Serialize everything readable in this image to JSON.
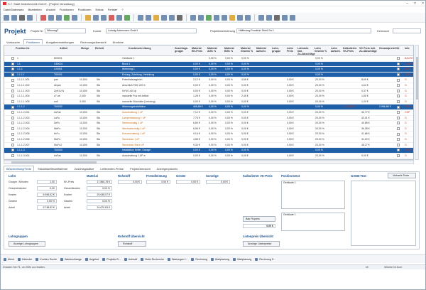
{
  "window": {
    "title": "S.T. Stadt Datentechnik GmbH - [Projekt Verwaltung]"
  },
  "menu": [
    "Datei/Datensatz",
    "Bearbeiten",
    "Ansicht",
    "Funktionen",
    "Positionen",
    "Extras",
    "Fenster",
    "?"
  ],
  "project": {
    "title": "Projekt",
    "nr_label": "Projekt Nr",
    "nr_value": "Wlerweg2",
    "kunde_label": "Kunde",
    "kunde_value": "Ludwig Ackermann GmbH",
    "bez_label": "Projektbezeichnung",
    "bez_value": "Häfferweg Frankfurt Strieß Nr.1",
    "kennwort_label": "Kennwort"
  },
  "tabs": [
    "Vorbauche",
    "Positionen",
    "Ausgabeeinstellungen",
    "Rechnungsübersicht",
    "Ähnliche"
  ],
  "active_tab": 1,
  "columns": [
    "Position Nr.",
    "Artikel",
    "Menge",
    "Einheit",
    "Kurzbeschreibung",
    "Zuschlags-gruppe",
    "Material EK-Preis",
    "Material AGK %",
    "Material BGK %",
    "Material Gewinn %",
    "Material aufschl.",
    "Lohn-gruppe",
    "Lohn Preis",
    "Lohnmin. inkl. Zu-/Abschläge",
    "Lohn Gewinn %",
    "Lohn aufschl.",
    "Kalkulierter VK-Preis",
    "VK Preis inkl. Zu-/Abschläge",
    "Gesamtpreis",
    "Ohl.",
    "Info"
  ],
  "rows": [
    {
      "pos": "1",
      "art": "800001",
      "menge": "",
      "einh": "",
      "text": "Gebäude 1",
      "mek": "",
      "magk": "0,00 %",
      "mbgk": "0,00 %",
      "mgew": "0,00 %",
      "lpreis": "",
      "lgew": "0,00 %",
      "kvk": "",
      "vk": "",
      "ges": "",
      "info": "BAUTEIL",
      "style": ""
    },
    {
      "pos": "1.1",
      "art": "G80001",
      "menge": "",
      "einh": "",
      "text": "Block 1",
      "mek": "0,00 €",
      "magk": "0,00 %",
      "mbgk": "0,00 %",
      "mgew": "0,00 %",
      "lpreis": "",
      "lgew": "0,00 %",
      "kvk": "",
      "vk": "",
      "ges": "",
      "info": "GEWERK",
      "style": "hl"
    },
    {
      "pos": "1.1.1",
      "art": "L00001",
      "menge": "",
      "einh": "",
      "text": "Wohnung 1",
      "mek": "0,00 €",
      "magk": "0,00 %",
      "mbgk": "0,00 %",
      "mgew": "0,00 %",
      "lpreis": "",
      "lgew": "0,00 %",
      "kvk": "",
      "vk": "",
      "ges": "",
      "info": "LOS",
      "style": "hl"
    },
    {
      "pos": "1.1.1.1",
      "art": "T00001",
      "menge": "",
      "einh": "",
      "text": "Erdung, Zuleitung, Verteilung",
      "mek": "0,00 €",
      "magk": "0,00 %",
      "mbgk": "0,00 %",
      "mgew": "0,00 %",
      "lpreis": "",
      "lgew": "0,00 %",
      "kvk": "",
      "vk": "",
      "ges": "",
      "info": "TITEL",
      "style": "hl"
    },
    {
      "pos": "1.1.1.1.001",
      "art": "pan",
      "menge": "10,000",
      "einh": "Stk",
      "text": "Potentialausgleich",
      "mek": "2,12 €",
      "magk": "0,00 %",
      "mbgk": "0,00 %",
      "mgew": "4,56 €",
      "lpreis": "0,00 €",
      "lgew": "20,00 %",
      "kvk": "",
      "vk": "8,65 €",
      "ges": "",
      "info": "G",
      "style": ""
    },
    {
      "pos": "1.1.1.1.002",
      "art": "depan",
      "menge": "10,000",
      "einh": "Stk",
      "text": "Anschluß PAS 10S 6",
      "mek": "0,00 €",
      "magk": "0,00 %",
      "mbgk": "0,00 %",
      "mgew": "0,00 €",
      "lpreis": "0,00 €",
      "lgew": "20,00 %",
      "kvk": "",
      "vk": "1,64 €",
      "ges": "",
      "info": "G",
      "style": ""
    },
    {
      "pos": "1.1.1.1.003",
      "art": "ZyH1V-N",
      "menge": "10,000",
      "einh": "Stk",
      "text": "NYM 1x10 ql",
      "mek": "0,00 €",
      "magk": "0,00 %",
      "mbgk": "0,00 %",
      "mgew": "0,00 €",
      "lpreis": "0,00 €",
      "lgew": "20,00 %",
      "kvk": "",
      "vk": "0,37 €",
      "ges": "",
      "info": "G",
      "style": ""
    },
    {
      "pos": "1.1.1.1.004",
      "art": "z7-ne",
      "menge": "2,000",
      "einh": "Stk",
      "text": "manuelle Pos mit Artikel",
      "mek": "1,28 €",
      "magk": "0,00 %",
      "mbgk": "0,00 %",
      "mgew": "2,45 €",
      "lpreis": "0,00 €",
      "lgew": "20,00 %",
      "kvk": "",
      "vk": "1,80 €",
      "ges": "",
      "info": "G",
      "style": ""
    },
    {
      "pos": "1.1.1.1.005",
      "art": "mdl",
      "menge": "3,000",
      "einh": "Stk",
      "text": "manuelle Stückliste (Leistung)",
      "mek": "0,00 €",
      "magk": "0,00 %",
      "mbgk": "0,00 %",
      "mgew": "0,00 €",
      "lpreis": "0,00 €",
      "lgew": "20,00 %",
      "kvk": "",
      "vk": "1,00 €",
      "ges": "",
      "info": "G",
      "style": ""
    },
    {
      "pos": "1.1.1.2",
      "art": "T00002",
      "menge": "",
      "einh": "",
      "text": "Wohnungsinstallation",
      "mek": "465,88 €",
      "magk": "0,00 %",
      "mbgk": "0,00 %",
      "mgew": "0,00 %",
      "lpreis": "",
      "lgew": "0,00 %",
      "kvk": "2.986,88 €",
      "vk": "",
      "ges": "2.986,88 €",
      "info": "TITEL",
      "style": "hl"
    },
    {
      "pos": "1.1.1.2.001",
      "art": "AsFav",
      "menge": "10,000",
      "einh": "Stk",
      "text": "Ausschaltung 1 uP",
      "mek": "7,12 €",
      "magk": "0,00 %",
      "mbgk": "0,00 %",
      "mgew": "0,00 €",
      "lpreis": "0,00 €",
      "lgew": "20,00 %",
      "kvk": "",
      "vk": "33,77 €",
      "ges": "",
      "info": "GSP",
      "style": "orange"
    },
    {
      "pos": "1.1.1.2.002",
      "art": "LaFu",
      "menge": "10,000",
      "einh": "Stk",
      "text": "Lampenfassung 1 uP",
      "mek": "7,75 €",
      "magk": "0,00 %",
      "mbgk": "0,00 %",
      "mgew": "0,00 €",
      "lpreis": "0,00 €",
      "lgew": "20,00 %",
      "kvk": "",
      "vk": "43,01 €",
      "ges": "",
      "info": "G",
      "style": "orange"
    },
    {
      "pos": "1.1.1.2.003",
      "art": "SeFu",
      "menge": "10,000",
      "einh": "Stk",
      "text": "Serienschaltg 1 uP",
      "mek": "6,80 €",
      "magk": "0,00 %",
      "mbgk": "0,00 %",
      "mgew": "0,00 €",
      "lpreis": "0,00 €",
      "lgew": "20,00 %",
      "kvk": "",
      "vk": "40,85 €",
      "ges": "",
      "info": "G",
      "style": "orange"
    },
    {
      "pos": "1.1.1.2.004",
      "art": "WeFu",
      "menge": "10,000",
      "einh": "Stk",
      "text": "Wechselschaltg 1 uP",
      "mek": "6,96 €",
      "magk": "0,00 %",
      "mbgk": "0,00 %",
      "mgew": "0,00 €",
      "lpreis": "0,00 €",
      "lgew": "20,00 %",
      "kvk": "",
      "vk": "39,08 €",
      "ges": "",
      "info": "G",
      "style": "orange"
    },
    {
      "pos": "1.1.1.2.005",
      "art": "KrFu",
      "menge": "10,000",
      "einh": "Stk",
      "text": "Kreuzschaltung 1 uP",
      "mek": "9,16 €",
      "magk": "0,00 %",
      "mbgk": "0,00 %",
      "mgew": "0,00 €",
      "lpreis": "0,00 €",
      "lgew": "20,00 %",
      "kvk": "",
      "vk": "41,86 €",
      "ges": "",
      "info": "G",
      "style": "orange"
    },
    {
      "pos": "1.1.1.2.006",
      "art": "StoFu",
      "menge": "10,000",
      "einh": "Stk",
      "text": "Steckdose 1 uP",
      "mek": "4,88 €",
      "magk": "0,00 %",
      "mbgk": "0,00 %",
      "mgew": "0,00 €",
      "lpreis": "0,00 €",
      "lgew": "20,00 %",
      "kvk": "",
      "vk": "31,00 €",
      "ges": "",
      "info": "G",
      "style": "orange"
    },
    {
      "pos": "1.1.1.2.007",
      "art": "StoFu2",
      "menge": "10,000",
      "einh": "Stk",
      "text": "Steckdose 2fach uP",
      "mek": "9,34 €",
      "magk": "0,00 %",
      "mbgk": "0,00 %",
      "mgew": "0,00 €",
      "lpreis": "0,00 €",
      "lgew": "20,00 %",
      "kvk": "",
      "vk": "48,27 €",
      "ges": "",
      "info": "G",
      "style": "orange"
    },
    {
      "pos": "1.1.1.3",
      "art": "T00003",
      "menge": "",
      "einh": "",
      "text": "Installation Keller, Garage",
      "mek": "0,00 €",
      "magk": "0,00 %",
      "mbgk": "0,00 %",
      "mgew": "0,00 %",
      "lpreis": "",
      "lgew": "0,00 %",
      "kvk": "",
      "vk": "",
      "ges": "",
      "info": "TITEL",
      "style": "hl"
    },
    {
      "pos": "1.1.1.3.001",
      "art": "AsFav",
      "menge": "10,000",
      "einh": "Stk",
      "text": "Ausschaltung 1 AP w",
      "mek": "0,00 €",
      "magk": "0,00 %",
      "mbgk": "0,00 %",
      "mgew": "0,00 €",
      "lpreis": "0,00 €",
      "lgew": "20,00 %",
      "kvk": "",
      "vk": "0,00 €",
      "ges": "",
      "info": "G",
      "style": ""
    }
  ],
  "bottom_tabs": [
    "Beschreibung/Texte",
    "Stückliste/Bedarfsführer",
    "Zuschlagssätze",
    "Lieferanten-Preise",
    "Projektübersicht",
    "Anzeigeoptionen"
  ],
  "details": {
    "lohn_title": "Lohn",
    "gruppe_label": "Gruppe / Minuten",
    "gruppe_value": "1,00",
    "einzelminuten_label": "Gesamtminuten",
    "einzelminuten_value": "0,00",
    "kosten_label": "Kosten",
    "kosten_value": "6.996,52 €",
    "gewinn_label": "Gewinn",
    "gewinn_value": "0,00 %",
    "anteil_label": "Anteil",
    "anteil_value": "6.748,82 €",
    "ek_label": "EK-Preis",
    "material_title": "Material",
    "mat_ek_value": "17.866,78 €",
    "mat_gesamtkosten_label": "Gesamtkosten",
    "mat_gesamtkosten_value": "0,00 %",
    "mat_kosten_value": "20.048,07 €",
    "mat_gewinn_value": "0,00 %",
    "mat_anteil_value": "24.670,63 €",
    "rohstoff_title": "Rohstoff",
    "rohstoff_value": "0,00 €",
    "fremd_title": "Fremdleistung",
    "fremd_value": "0,00 €",
    "geraete_title": "Geräte",
    "geraete_value": "0,00 €",
    "sonstige_title": "Sonstige",
    "sonstige_value": "0,00 €",
    "kalk_title": "Kalkulierter VK-Preis",
    "fixpreis_button": "Bak Fixpreis",
    "kalk_value": "0,00 €",
    "posvk_title": "Positionstext",
    "gebaeude_label": "Gebäude 1",
    "gebaeude_label2": "Gebäude 1",
    "gaeb_title": "GAEB-Text",
    "gaeb_button": "Verbarte Texte",
    "lohngruppen_title": "Lohngruppen",
    "lohngruppen_button": "Anzeige Lohngruppen",
    "rohstoff_uebersicht_title": "Rohstoff Übersicht",
    "rohstoff_uebersicht_button": "Rohstoff",
    "listenpreis_title": "Listenpreis Übersicht",
    "listenpreis_button": "Anzeige Listenpreise"
  },
  "footer_buttons": [
    "Menü",
    "Kalender",
    "Kunden Suche",
    "Warteschlange",
    "Angebot",
    "Projekte B...",
    "Aufmaß",
    "Notiz Recherche",
    "Wartungen f...",
    "Rechnung",
    "Wartplanung",
    "Wartplanung",
    "Rechnung S..."
  ],
  "status": {
    "left": "Drücken Sie F1, um Hilfe zu erhalten.",
    "right": "Nt",
    "right2": "Wöchte Nr.Kunt"
  }
}
